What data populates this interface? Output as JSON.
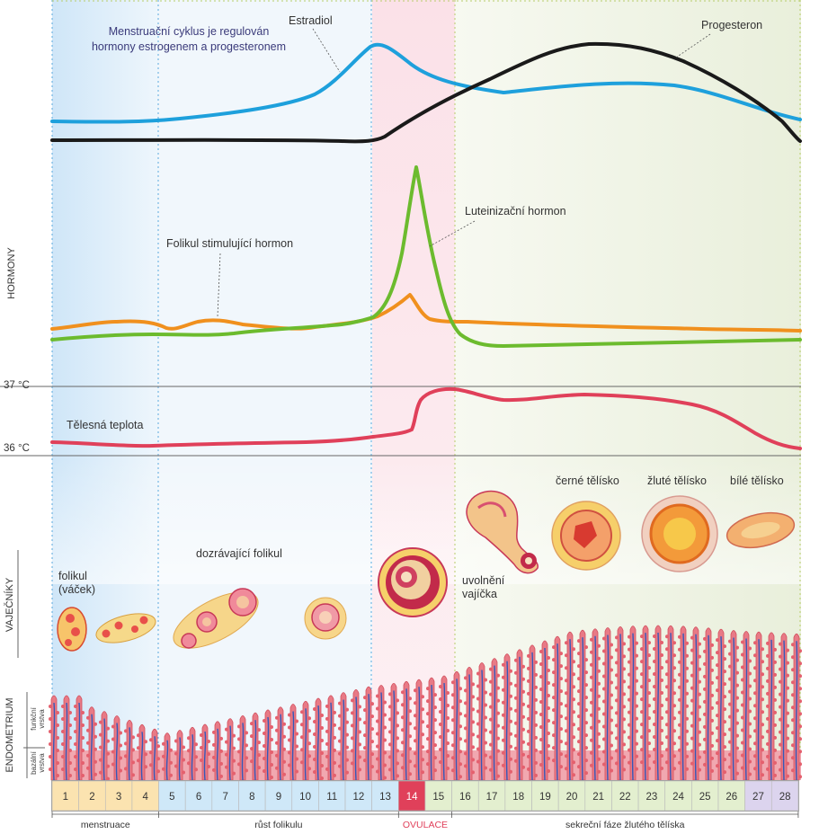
{
  "title_lines": [
    "Menstruační cyklus je regulován",
    "hormony estrogenem a progesteronem"
  ],
  "section_labels": {
    "hormony": "HORMONY",
    "vajecniky": "VAJEČNÍKY",
    "endometrium": "ENDOMETRIUM",
    "funkcni_vrstva": [
      "funkční",
      "vrstva"
    ],
    "bazalni_vrstva": [
      "bazální",
      "vrstva"
    ]
  },
  "hormone_labels": {
    "estradiol": "Estradiol",
    "progesteron": "Progesteron",
    "lh": "Luteinizační hormon",
    "fsh": "Folikul stimulující hormon"
  },
  "temperature": {
    "label": "Tělesná teplota",
    "tick_high": "37 °C",
    "tick_low": "36 °C"
  },
  "ovary_labels": {
    "folikul": [
      "folikul",
      "(váček)"
    ],
    "dozravajici": "dozrávající folikul",
    "uvolneni": [
      "uvolnění",
      "vajíčka"
    ],
    "cerne": "černé tělísko",
    "zlute": "žluté tělísko",
    "bile": "bílé tělísko"
  },
  "days": [
    "1",
    "2",
    "3",
    "4",
    "5",
    "6",
    "7",
    "8",
    "9",
    "10",
    "11",
    "12",
    "13",
    "14",
    "15",
    "16",
    "17",
    "18",
    "19",
    "20",
    "21",
    "22",
    "23",
    "24",
    "25",
    "26",
    "27",
    "28"
  ],
  "phases": [
    {
      "label": "menstruace",
      "from_day": 1,
      "to_day": 4
    },
    {
      "label": "růst folikulu",
      "from_day": 5,
      "to_day": 13
    },
    {
      "label": "OVULACE",
      "from_day": 14,
      "to_day": 15
    },
    {
      "label": "sekreční fáze žlutého tělíska",
      "from_day": 16,
      "to_day": 28
    }
  ],
  "colors": {
    "estradiol": "#1ea0dc",
    "progesteron": "#1a1a1a",
    "lh": "#6cbb2e",
    "fsh": "#f0901e",
    "temperature": "#e0405a",
    "menstruation_bg": "#d8ecfa",
    "ovulation_bg": "#fbe4ea",
    "luteal_bg": "#eef3e2",
    "day_menstruation": "#fbe3b0",
    "day_follicular": "#cfe8f8",
    "day_ovulation": "#e0405a",
    "day_luteal": "#e3efcf",
    "day_late": "#dcd4ee",
    "ovulation_text": "#e0405a",
    "label_text": "#333333",
    "title_text": "#3a3a7a"
  }
}
